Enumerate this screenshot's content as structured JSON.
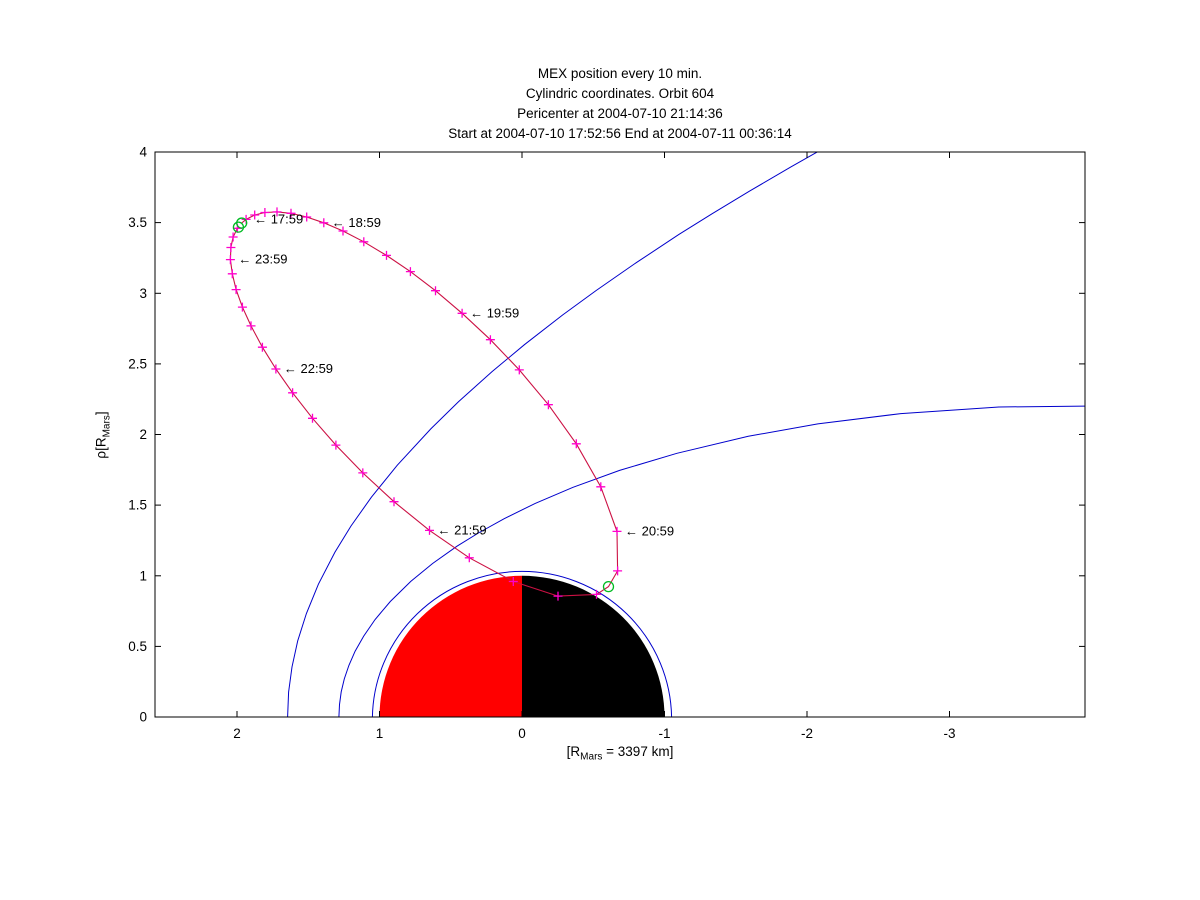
{
  "titles": [
    "MEX position every 10 min.",
    "Cylindric coordinates. Orbit 604",
    "Pericenter at 2004-07-10 21:14:36",
    "Start at 2004-07-10 17:52:56 End at 2004-07-11 00:36:14"
  ],
  "chart_data": {
    "type": "line",
    "title": "MEX position every 10 min. Cylindric coordinates. Orbit 604",
    "xlabel_parts": {
      "pre": "[R",
      "sub": "Mars",
      "post": " = 3397 km]"
    },
    "ylabel_parts": {
      "pre": "ρ[R",
      "sub": "Mars",
      "post": "]"
    },
    "x_axis_reversed": true,
    "x_range": [
      2.5754,
      -3.9509
    ],
    "y_range": [
      0,
      4
    ],
    "x_ticks": [
      2,
      1,
      0,
      -1,
      -2,
      -3
    ],
    "y_ticks": [
      0,
      0.5,
      1,
      1.5,
      2,
      2.5,
      3,
      3.5,
      4
    ],
    "grid": false,
    "orbit": {
      "line_color": "#cc1144",
      "marker_color": "#ff00cc",
      "endpoint_color": "#00bb22",
      "marker_interval_min": 10,
      "points": [
        [
          1.936,
          3.523
        ],
        [
          1.876,
          3.554
        ],
        [
          1.804,
          3.572
        ],
        [
          1.719,
          3.576
        ],
        [
          1.621,
          3.566
        ],
        [
          1.511,
          3.54
        ],
        [
          1.391,
          3.499
        ],
        [
          1.256,
          3.441
        ],
        [
          1.11,
          3.364
        ],
        [
          0.951,
          3.268
        ],
        [
          0.783,
          3.153
        ],
        [
          0.607,
          3.018
        ],
        [
          0.42,
          2.858
        ],
        [
          0.222,
          2.671
        ],
        [
          0.019,
          2.457
        ],
        [
          -0.185,
          2.211
        ],
        [
          -0.381,
          1.934
        ],
        [
          -0.553,
          1.63
        ],
        [
          -0.667,
          1.314
        ],
        [
          -0.671,
          1.034
        ],
        [
          -0.523,
          0.868
        ],
        [
          -0.253,
          0.856
        ],
        [
          0.061,
          0.959
        ],
        [
          0.37,
          1.127
        ],
        [
          0.649,
          1.321
        ],
        [
          0.898,
          1.524
        ],
        [
          1.117,
          1.728
        ],
        [
          1.306,
          1.925
        ],
        [
          1.47,
          2.115
        ],
        [
          1.61,
          2.295
        ],
        [
          1.727,
          2.464
        ],
        [
          1.822,
          2.618
        ],
        [
          1.902,
          2.769
        ],
        [
          1.962,
          2.902
        ],
        [
          2.006,
          3.026
        ],
        [
          2.033,
          3.138
        ],
        [
          2.046,
          3.238
        ],
        [
          2.043,
          3.324
        ],
        [
          2.027,
          3.398
        ],
        [
          1.997,
          3.46
        ]
      ],
      "start_point": [
        1.967,
        3.497
      ],
      "end_point": [
        1.99,
        3.468
      ],
      "pericenter_point": [
        -0.607,
        0.923
      ],
      "pericenter_after_index": 19
    },
    "annotations": {
      "arrow": "←",
      "items": [
        {
          "label": "17:59",
          "point_index": 0
        },
        {
          "label": "18:59",
          "point_index": 6
        },
        {
          "label": "19:59",
          "point_index": 12
        },
        {
          "label": "20:59",
          "point_index": 18
        },
        {
          "label": "21:59",
          "point_index": 24
        },
        {
          "label": "22:59",
          "point_index": 30
        },
        {
          "label": "23:59",
          "point_index": 36
        }
      ]
    },
    "boundaries": {
      "color": "#0000cc",
      "bow_shock": [
        [
          1.645,
          0
        ],
        [
          1.638,
          0.176
        ],
        [
          1.614,
          0.355
        ],
        [
          1.574,
          0.539
        ],
        [
          1.513,
          0.733
        ],
        [
          1.429,
          0.94
        ],
        [
          1.313,
          1.166
        ],
        [
          1.2,
          1.352
        ],
        [
          1.057,
          1.556
        ],
        [
          0.875,
          1.783
        ],
        [
          0.64,
          2.04
        ],
        [
          0.445,
          2.233
        ],
        [
          0.209,
          2.446
        ],
        [
          -0.017,
          2.636
        ],
        [
          -0.285,
          2.846
        ],
        [
          -0.519,
          3.019
        ],
        [
          -0.788,
          3.207
        ],
        [
          -1.1,
          3.415
        ],
        [
          -1.335,
          3.563
        ],
        [
          -1.597,
          3.723
        ],
        [
          -1.89,
          3.896
        ],
        [
          -2.219,
          4.084
        ]
      ],
      "mpb": [
        [
          1.285,
          0
        ],
        [
          1.281,
          0.088
        ],
        [
          1.269,
          0.178
        ],
        [
          1.247,
          0.27
        ],
        [
          1.215,
          0.365
        ],
        [
          1.171,
          0.466
        ],
        [
          1.111,
          0.573
        ],
        [
          1.031,
          0.69
        ],
        [
          0.924,
          0.818
        ],
        [
          0.78,
          0.96
        ],
        [
          0.627,
          1.087
        ],
        [
          0.456,
          1.209
        ],
        [
          0.306,
          1.303
        ],
        [
          0.125,
          1.404
        ],
        [
          -0.093,
          1.512
        ],
        [
          -0.358,
          1.626
        ],
        [
          -0.685,
          1.746
        ],
        [
          -1.087,
          1.867
        ],
        [
          -1.588,
          1.987
        ],
        [
          -2.076,
          2.075
        ],
        [
          -2.658,
          2.148
        ],
        [
          -3.347,
          2.195
        ],
        [
          -3.941,
          2.201
        ],
        [
          -4.37,
          2.186
        ]
      ]
    },
    "mars": {
      "radius": 1,
      "outline_radius": 1.05,
      "day_color": "#ff0000",
      "night_color": "#000000",
      "outline_color": "#0000cc"
    }
  }
}
